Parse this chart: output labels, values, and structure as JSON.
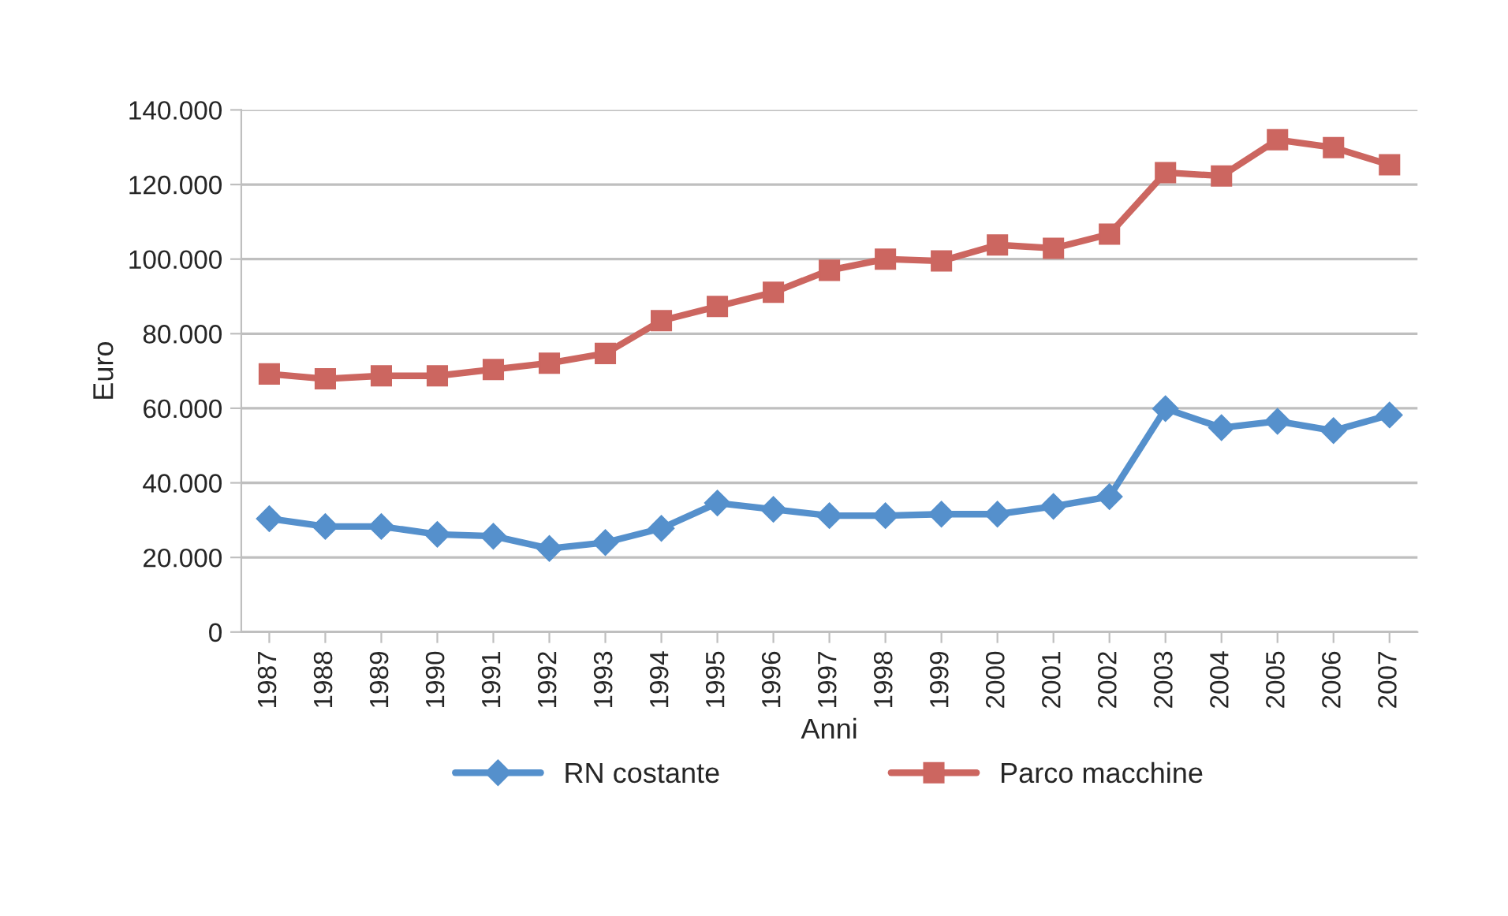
{
  "chart_data": {
    "type": "line",
    "xlabel": "Anni",
    "ylabel": "Euro",
    "categories": [
      "1987",
      "1988",
      "1989",
      "1990",
      "1991",
      "1992",
      "1993",
      "1994",
      "1995",
      "1996",
      "1997",
      "1998",
      "1999",
      "2000",
      "2001",
      "2002",
      "2003",
      "2004",
      "2005",
      "2006",
      "2007"
    ],
    "series": [
      {
        "name": "RN costante",
        "color": "#5590cc",
        "marker": "diamond",
        "values": [
          30400,
          28300,
          28300,
          26200,
          25700,
          22400,
          24000,
          27800,
          34600,
          32900,
          31200,
          31200,
          31600,
          31600,
          33700,
          36300,
          59900,
          54800,
          56500,
          54000,
          58200
        ]
      },
      {
        "name": "Parco macchine",
        "color": "#cc6660",
        "marker": "square",
        "values": [
          69200,
          67900,
          68700,
          68700,
          70400,
          72100,
          74700,
          83500,
          87300,
          91100,
          97000,
          100000,
          99500,
          103800,
          102900,
          106700,
          123200,
          122300,
          132000,
          129900,
          125300
        ]
      }
    ],
    "ylim": [
      0,
      140000
    ],
    "yticks": [
      0,
      {
        "value": 20000,
        "label": "20.000"
      },
      {
        "value": 40000,
        "label": "40.000"
      },
      {
        "value": 60000,
        "label": "60.000"
      },
      {
        "value": 80000,
        "label": "80.000"
      },
      {
        "value": 100000,
        "label": "100.000"
      },
      {
        "value": 120000,
        "label": "120.000"
      },
      {
        "value": 140000,
        "label": "140.000"
      }
    ],
    "grid": "y",
    "legend": "bottom",
    "line_style": "solid"
  }
}
